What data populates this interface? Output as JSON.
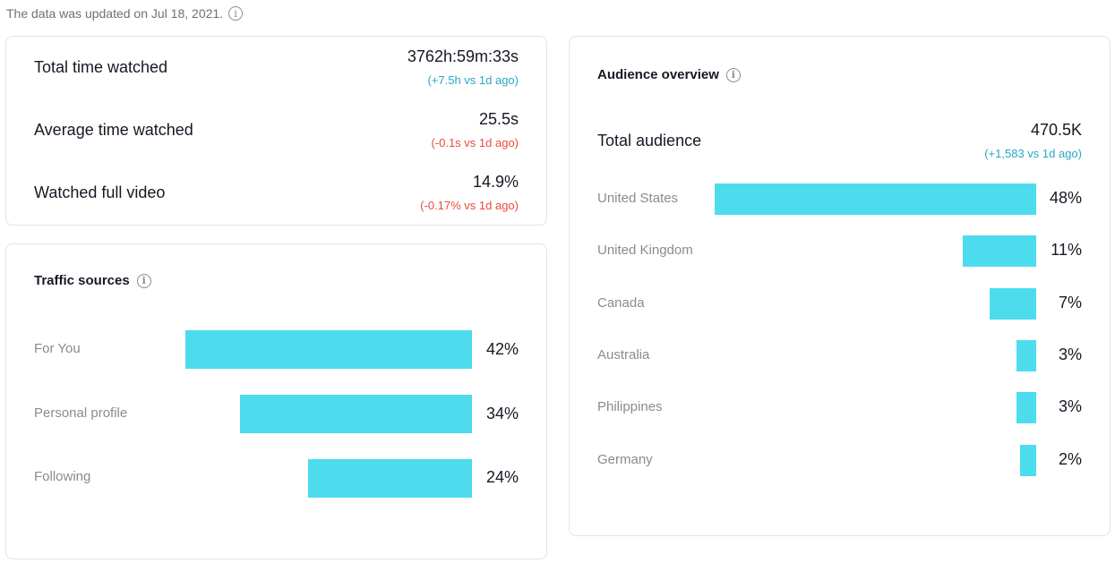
{
  "update": {
    "text": "The data was updated on Jul 18, 2021.",
    "info_icon": "info-icon"
  },
  "metrics": [
    {
      "label": "Total time watched",
      "value": "3762h:59m:33s",
      "delta": "(+7.5h vs 1d ago)",
      "trend": "up"
    },
    {
      "label": "Average time watched",
      "value": "25.5s",
      "delta": "(-0.1s vs 1d ago)",
      "trend": "down"
    },
    {
      "label": "Watched full video",
      "value": "14.9%",
      "delta": "(-0.17% vs 1d ago)",
      "trend": "down"
    }
  ],
  "traffic": {
    "title": "Traffic sources",
    "info_icon": "info-icon",
    "rows": [
      {
        "label": "For You",
        "percent": 42,
        "percent_label": "42%"
      },
      {
        "label": "Personal profile",
        "percent": 34,
        "percent_label": "34%"
      },
      {
        "label": "Following",
        "percent": 24,
        "percent_label": "24%"
      }
    ]
  },
  "audience": {
    "title": "Audience overview",
    "info_icon": "info-icon",
    "total_label": "Total audience",
    "total_value": "470.5K",
    "total_delta": "(+1,583 vs 1d ago)",
    "rows": [
      {
        "label": "United States",
        "percent": 48,
        "percent_label": "48%"
      },
      {
        "label": "United Kingdom",
        "percent": 11,
        "percent_label": "11%"
      },
      {
        "label": "Canada",
        "percent": 7,
        "percent_label": "7%"
      },
      {
        "label": "Australia",
        "percent": 3,
        "percent_label": "3%"
      },
      {
        "label": "Philippines",
        "percent": 3,
        "percent_label": "3%"
      },
      {
        "label": "Germany",
        "percent": 2,
        "percent_label": "2%"
      }
    ]
  },
  "colors": {
    "bar": "#4ddcee",
    "delta_up": "#2aa6c4",
    "delta_down": "#ea4b3c"
  }
}
